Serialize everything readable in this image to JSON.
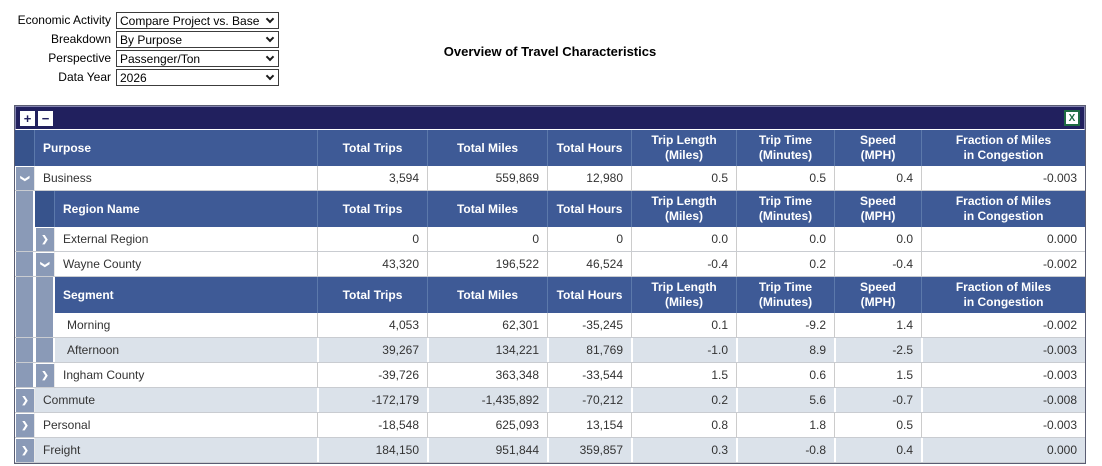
{
  "controls": {
    "fields": [
      {
        "label": "Economic Activity",
        "value": "Compare Project vs. Base"
      },
      {
        "label": "Breakdown",
        "value": "By Purpose"
      },
      {
        "label": "Perspective",
        "value": "Passenger/Ton"
      },
      {
        "label": "Data Year",
        "value": "2026"
      }
    ]
  },
  "title": "Overview of Travel Characteristics",
  "toolbar": {
    "expand_icon": "+",
    "collapse_icon": "−",
    "excel_icon": "X"
  },
  "icons": {
    "chevron": "❯"
  },
  "colors": {
    "header_blue": "#3e5a96",
    "toolbar_navy": "#21205e",
    "indent_blue_gray": "#8a9ab7",
    "shaded_row": "#dbe2ea",
    "excel_green": "#1f6b43"
  },
  "table": {
    "value_headers": [
      [
        "Total Trips",
        ""
      ],
      [
        "Total Miles",
        ""
      ],
      [
        "Total Hours",
        ""
      ],
      [
        "Trip Length",
        "(Miles)"
      ],
      [
        "Trip Time",
        "(Minutes)"
      ],
      [
        "Speed",
        "(MPH)"
      ],
      [
        "Fraction of Miles",
        "in Congestion"
      ]
    ],
    "rows": [
      {
        "type": "header",
        "level": 0,
        "name": "Purpose"
      },
      {
        "type": "data",
        "level": 0,
        "expander": "expanded",
        "shaded": false,
        "name": "Business",
        "values": [
          "3,594",
          "559,869",
          "12,980",
          "0.5",
          "0.5",
          "0.4",
          "-0.003"
        ]
      },
      {
        "type": "header",
        "level": 1,
        "name": "Region Name"
      },
      {
        "type": "data",
        "level": 1,
        "expander": "collapsed",
        "shaded": false,
        "name": "External Region",
        "values": [
          "0",
          "0",
          "0",
          "0.0",
          "0.0",
          "0.0",
          "0.000"
        ]
      },
      {
        "type": "data",
        "level": 1,
        "expander": "expanded",
        "shaded": false,
        "name": "Wayne County",
        "values": [
          "43,320",
          "196,522",
          "46,524",
          "-0.4",
          "0.2",
          "-0.4",
          "-0.002"
        ]
      },
      {
        "type": "header",
        "level": 2,
        "name": "Segment"
      },
      {
        "type": "data",
        "level": 2,
        "expander": "none",
        "shaded": false,
        "name": "Morning",
        "values": [
          "4,053",
          "62,301",
          "-35,245",
          "0.1",
          "-9.2",
          "1.4",
          "-0.002"
        ]
      },
      {
        "type": "data",
        "level": 2,
        "expander": "none",
        "shaded": true,
        "name": "Afternoon",
        "values": [
          "39,267",
          "134,221",
          "81,769",
          "-1.0",
          "8.9",
          "-2.5",
          "-0.003"
        ]
      },
      {
        "type": "data",
        "level": 1,
        "expander": "collapsed",
        "shaded": false,
        "name": "Ingham County",
        "values": [
          "-39,726",
          "363,348",
          "-33,544",
          "1.5",
          "0.6",
          "1.5",
          "-0.003"
        ]
      },
      {
        "type": "data",
        "level": 0,
        "expander": "collapsed",
        "shaded": true,
        "name": "Commute",
        "values": [
          "-172,179",
          "-1,435,892",
          "-70,212",
          "0.2",
          "5.6",
          "-0.7",
          "-0.008"
        ]
      },
      {
        "type": "data",
        "level": 0,
        "expander": "collapsed",
        "shaded": false,
        "name": "Personal",
        "values": [
          "-18,548",
          "625,093",
          "13,154",
          "0.8",
          "1.8",
          "0.5",
          "-0.003"
        ]
      },
      {
        "type": "data",
        "level": 0,
        "expander": "collapsed",
        "shaded": true,
        "name": "Freight",
        "values": [
          "184,150",
          "951,844",
          "359,857",
          "0.3",
          "-0.8",
          "0.4",
          "0.000"
        ]
      }
    ]
  }
}
